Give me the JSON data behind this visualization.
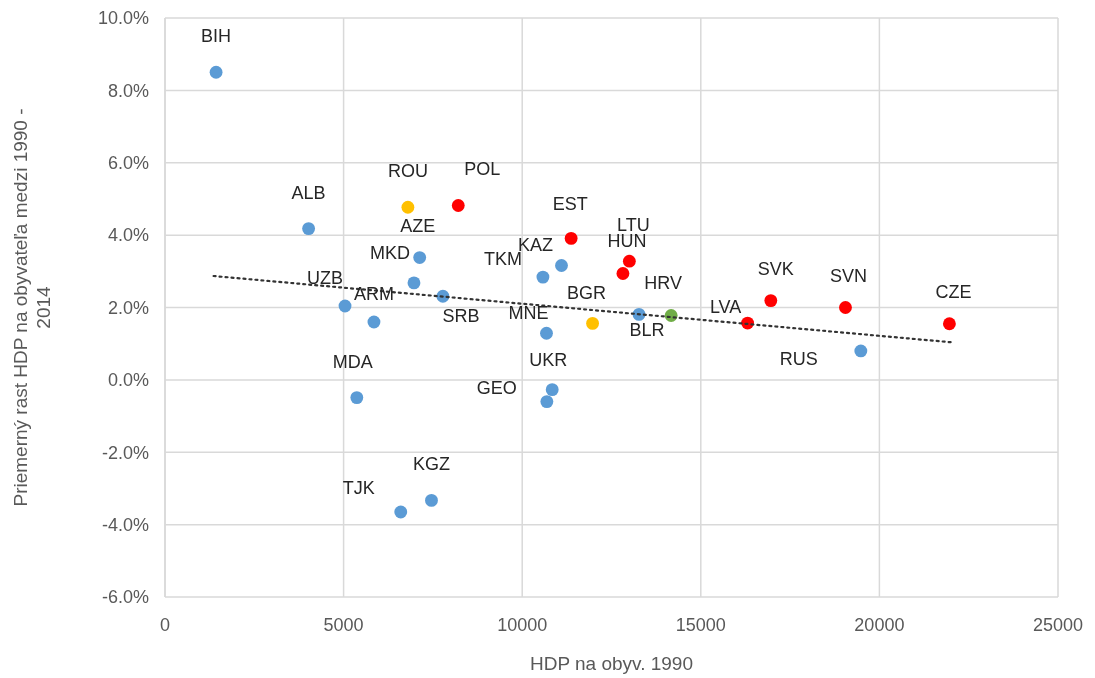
{
  "chart_data": {
    "type": "scatter",
    "xlabel": "HDP na obyv. 1990",
    "ylabel": "Priemerný rast HDP na obyvateľa medzi 1990 - 2014",
    "xlim": [
      0,
      25000
    ],
    "xticks": [
      0,
      5000,
      10000,
      15000,
      20000,
      25000
    ],
    "ylim": [
      -6,
      10
    ],
    "yticks": [
      {
        "value": -6,
        "label": "-6.0%"
      },
      {
        "value": -4,
        "label": "-4.0%"
      },
      {
        "value": -2,
        "label": "-2.0%"
      },
      {
        "value": 0,
        "label": "0.0%"
      },
      {
        "value": 2,
        "label": "2.0%"
      },
      {
        "value": 4,
        "label": "4.0%"
      },
      {
        "value": 6,
        "label": "6.0%"
      },
      {
        "value": 8,
        "label": "8.0%"
      },
      {
        "value": 10,
        "label": "10.0%"
      }
    ],
    "grid": true,
    "marker": "circle",
    "series": [
      {
        "color": "#5b9bd5",
        "x": [
          1430,
          4020,
          7130,
          6970,
          7780,
          5040,
          5850,
          10580,
          11100,
          10680,
          13270,
          19480,
          10840,
          10690,
          5370,
          6600,
          7460
        ],
        "values": [
          8.5,
          4.18,
          3.38,
          2.68,
          2.31,
          2.04,
          1.6,
          2.84,
          3.16,
          1.29,
          1.81,
          0.8,
          -0.27,
          -0.6,
          -0.49,
          -3.65,
          -3.33
        ]
      },
      {
        "color": "#ff0000",
        "x": [
          8210,
          11370,
          13000,
          12820,
          16310,
          16960,
          19050,
          21960
        ],
        "values": [
          4.82,
          3.91,
          3.28,
          2.94,
          1.57,
          2.19,
          2.0,
          1.55
        ]
      },
      {
        "color": "#ffc000",
        "x": [
          6800,
          11970
        ],
        "values": [
          4.77,
          1.56
        ]
      },
      {
        "color": "#70ad47",
        "x": [
          14170
        ],
        "values": [
          1.78
        ]
      },
      {
        "type": "line",
        "color": "#333333",
        "line_style": "dotted",
        "marker": "none",
        "x": [
          1360,
          22000
        ],
        "values": [
          2.87,
          1.04
        ]
      }
    ],
    "annotations": [
      {
        "text": "BIH",
        "x": 1430,
        "y": 8.5
      },
      {
        "text": "ALB",
        "x": 4020,
        "y": 4.18
      },
      {
        "text": "ROU",
        "x": 6800,
        "y": 4.77
      },
      {
        "text": "POL",
        "x": 8210,
        "y": 4.82
      },
      {
        "text": "AZE",
        "x": 7130,
        "y": 3.38
      },
      {
        "text": "MKD",
        "x": 6970,
        "y": 2.68
      },
      {
        "text": "SRB",
        "x": 7780,
        "y": 2.31
      },
      {
        "text": "UZB",
        "x": 5040,
        "y": 2.04
      },
      {
        "text": "ARM",
        "x": 5850,
        "y": 1.6
      },
      {
        "text": "TKM",
        "x": 10580,
        "y": 2.84
      },
      {
        "text": "KAZ",
        "x": 11100,
        "y": 3.16
      },
      {
        "text": "EST",
        "x": 11370,
        "y": 3.91
      },
      {
        "text": "LTU",
        "x": 13000,
        "y": 3.28
      },
      {
        "text": "HUN",
        "x": 12820,
        "y": 2.94
      },
      {
        "text": "MNE",
        "x": 10680,
        "y": 1.29
      },
      {
        "text": "BGR",
        "x": 11970,
        "y": 1.56
      },
      {
        "text": "BLR",
        "x": 13270,
        "y": 1.81
      },
      {
        "text": "HRV",
        "x": 14170,
        "y": 1.78
      },
      {
        "text": "LVA",
        "x": 16310,
        "y": 1.57
      },
      {
        "text": "SVK",
        "x": 16960,
        "y": 2.19
      },
      {
        "text": "SVN",
        "x": 19050,
        "y": 2.0
      },
      {
        "text": "RUS",
        "x": 19480,
        "y": 0.8
      },
      {
        "text": "CZE",
        "x": 21960,
        "y": 1.55
      },
      {
        "text": "UKR",
        "x": 10840,
        "y": -0.27
      },
      {
        "text": "GEO",
        "x": 10690,
        "y": -0.6
      },
      {
        "text": "MDA",
        "x": 5370,
        "y": -0.49
      },
      {
        "text": "TJK",
        "x": 6600,
        "y": -3.65
      },
      {
        "text": "KGZ",
        "x": 7460,
        "y": -3.33
      }
    ]
  }
}
